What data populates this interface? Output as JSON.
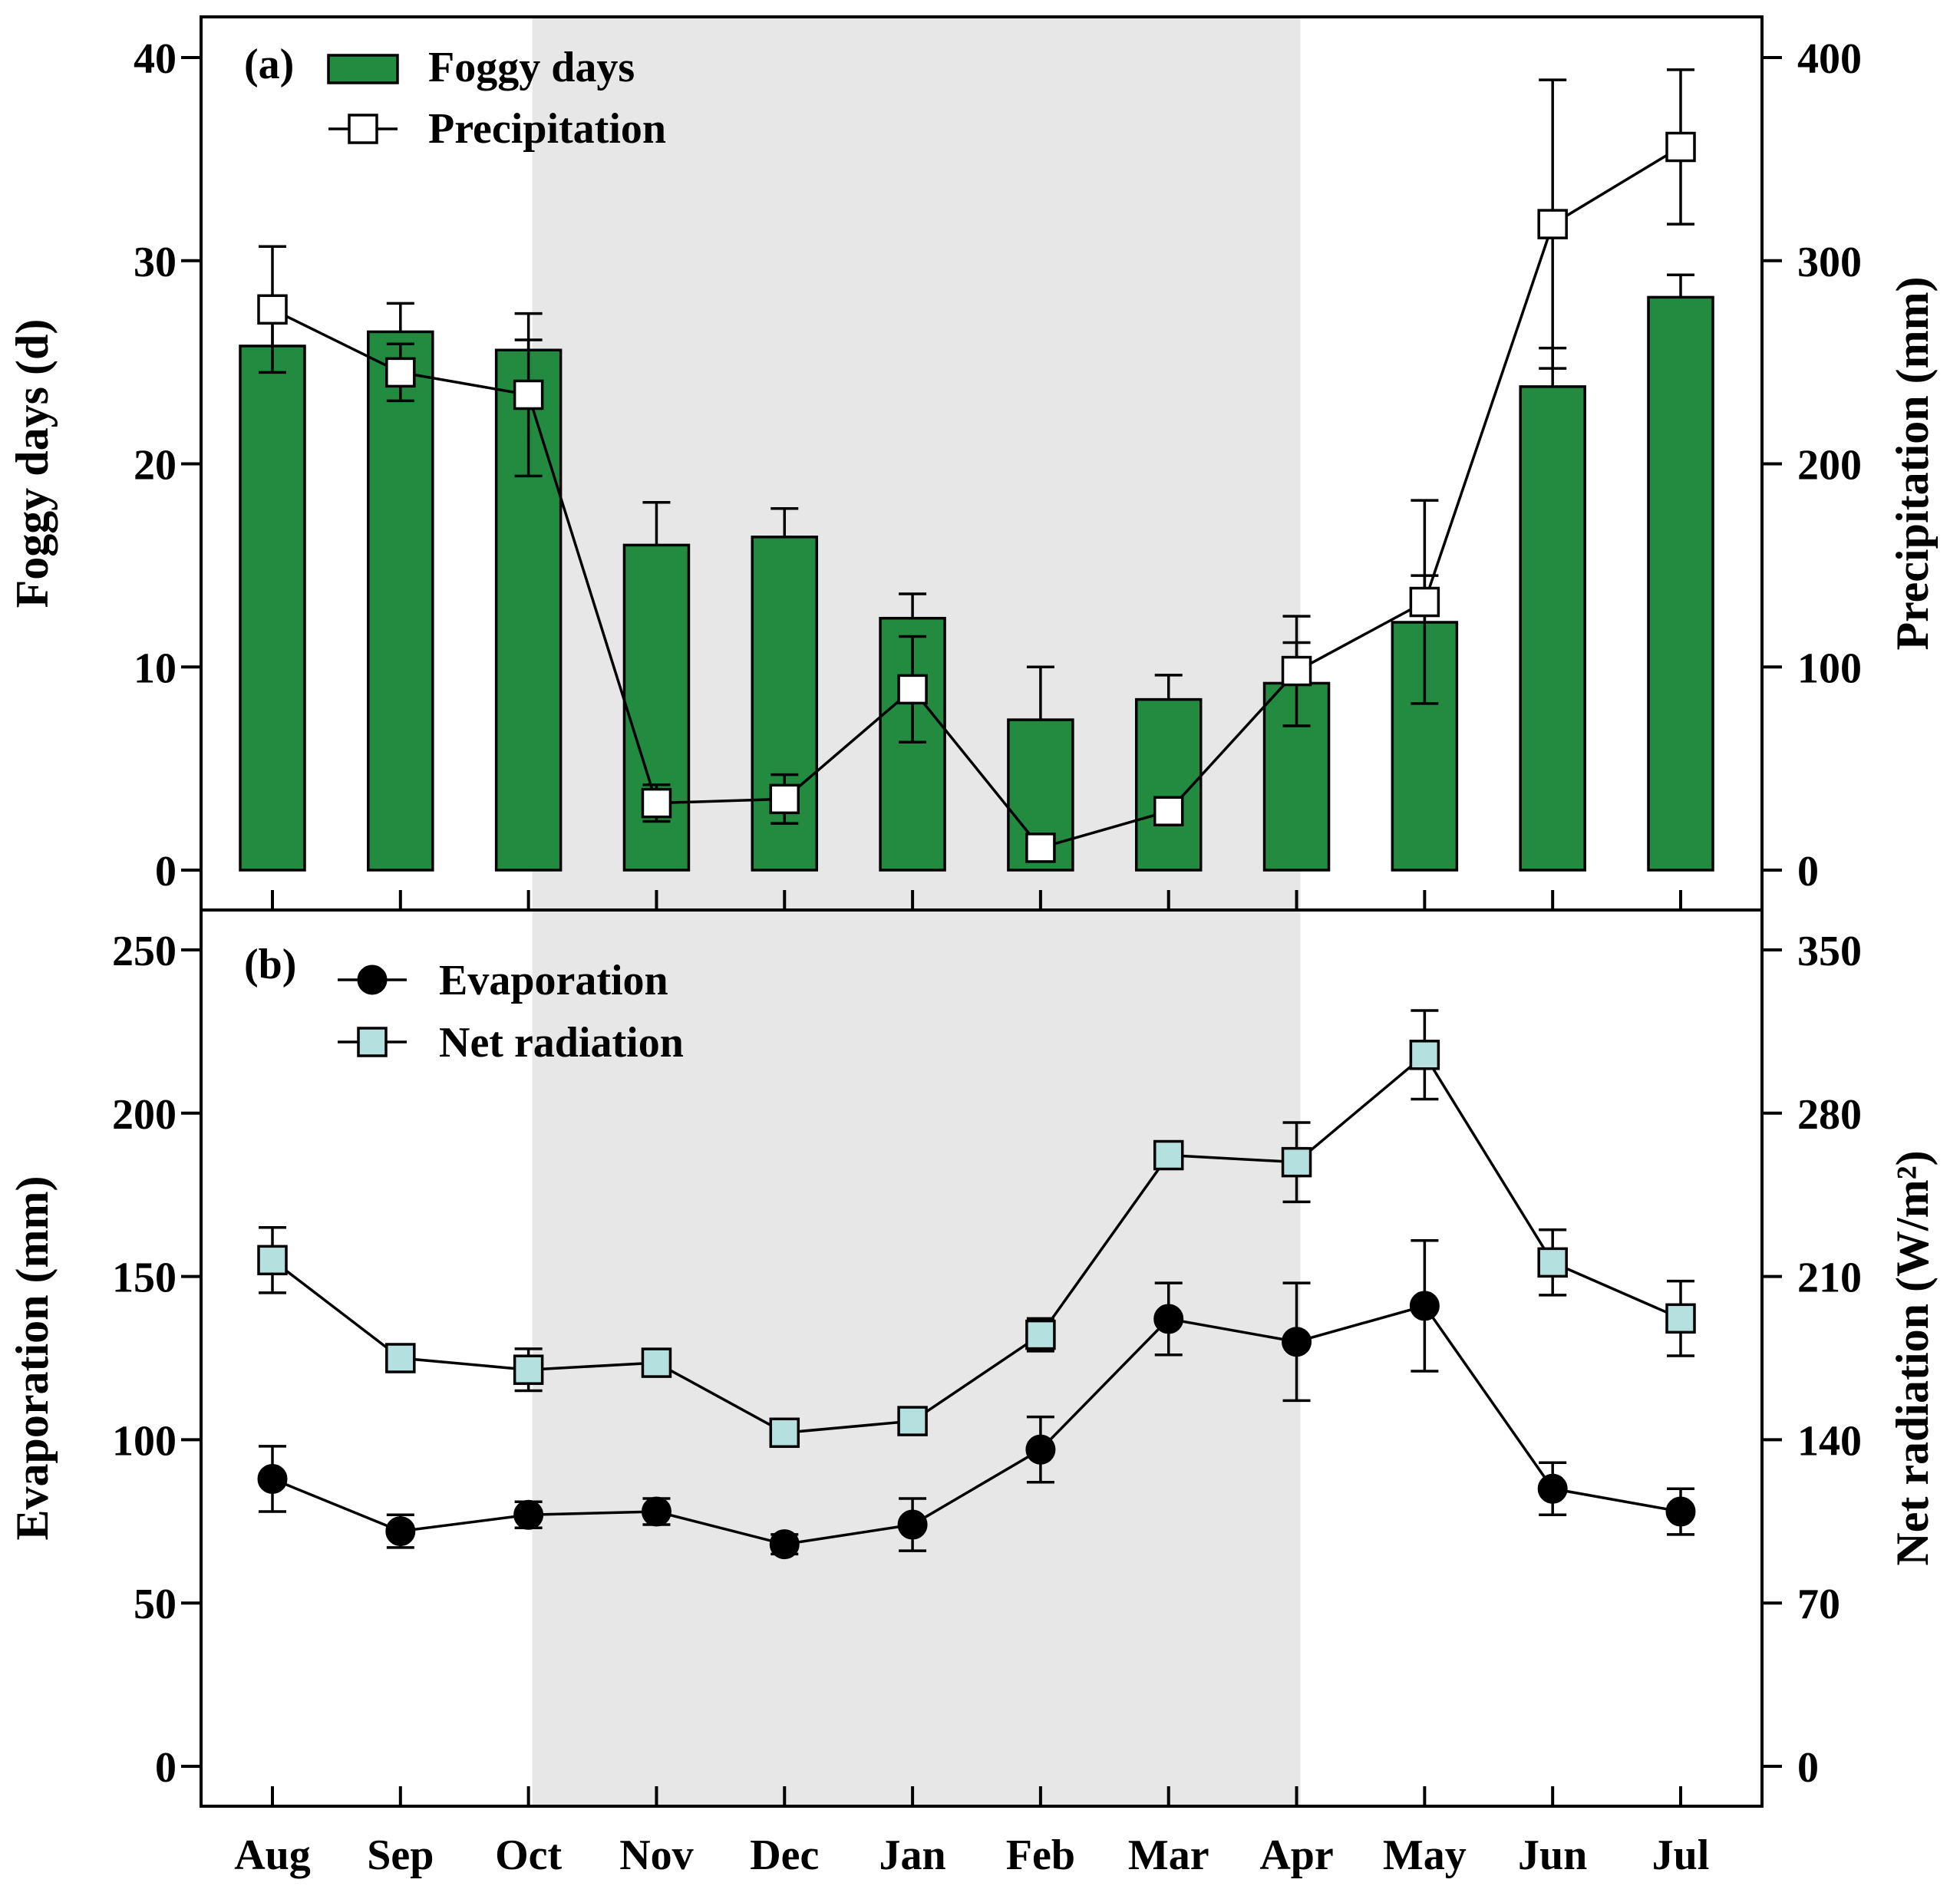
{
  "chart_data": [
    {
      "type": "bar",
      "panel_label": "(a)",
      "categories": [
        "Aug",
        "Sep",
        "Oct",
        "Nov",
        "Dec",
        "Jan",
        "Feb",
        "Mar",
        "Apr",
        "May",
        "Jun",
        "Jul"
      ],
      "shaded_range": [
        "Oct",
        "Apr"
      ],
      "ylabel": "Foggy days (d)",
      "ylim": [
        0,
        40
      ],
      "yticks": [
        0,
        10,
        20,
        30,
        40
      ],
      "y2label": "Precipitation (mm)",
      "y2lim": [
        0,
        400
      ],
      "y2ticks": [
        0,
        100,
        200,
        300,
        400
      ],
      "legend_position": "top-left",
      "series": [
        {
          "name": "Foggy days",
          "kind": "bar",
          "axis": "left",
          "color": "#228b3f",
          "values": [
            25.8,
            26.5,
            25.6,
            16.0,
            16.4,
            12.4,
            7.4,
            8.4,
            9.2,
            12.2,
            23.8,
            28.2
          ],
          "errors": [
            1.2,
            1.4,
            0.5,
            2.1,
            1.4,
            1.2,
            2.6,
            1.2,
            2.0,
            2.3,
            1.9,
            1.1
          ]
        },
        {
          "name": "Precipitation",
          "kind": "line",
          "axis": "right",
          "marker": "open-square",
          "values": [
            276,
            245,
            234,
            33,
            35,
            89,
            11,
            29,
            98,
            132,
            318,
            356
          ],
          "errors": [
            31,
            14,
            40,
            9,
            12,
            26,
            0,
            0,
            27,
            50,
            71,
            38
          ]
        }
      ]
    },
    {
      "type": "line",
      "panel_label": "(b)",
      "categories": [
        "Aug",
        "Sep",
        "Oct",
        "Nov",
        "Dec",
        "Jan",
        "Feb",
        "Mar",
        "Apr",
        "May",
        "Jun",
        "Jul"
      ],
      "shaded_range": [
        "Oct",
        "Apr"
      ],
      "ylabel": "Evaporation (mm)",
      "ylim": [
        0,
        250
      ],
      "yticks": [
        0,
        50,
        100,
        150,
        200,
        250
      ],
      "y2label": "Net radiation  (W/m²)",
      "y2lim": [
        0,
        350
      ],
      "y2ticks": [
        0,
        70,
        140,
        210,
        280,
        350
      ],
      "legend_position": "top-left",
      "series": [
        {
          "name": "Evaporation",
          "kind": "line",
          "axis": "left",
          "marker": "filled-circle",
          "values": [
            88,
            72,
            77,
            78,
            68,
            74,
            97,
            137,
            130,
            141,
            85,
            78
          ],
          "errors": [
            10,
            5,
            4,
            4,
            3,
            8,
            10,
            11,
            18,
            20,
            8,
            7
          ]
        },
        {
          "name": "Net radiation",
          "kind": "line",
          "axis": "right",
          "marker": "cyan-square",
          "color": "#b4e0e0",
          "values": [
            217,
            175,
            170,
            173,
            143,
            148,
            185,
            262,
            259,
            305,
            216,
            192
          ],
          "errors": [
            14,
            0,
            9,
            0,
            0,
            0,
            7,
            0,
            17,
            19,
            14,
            16
          ]
        }
      ]
    }
  ]
}
